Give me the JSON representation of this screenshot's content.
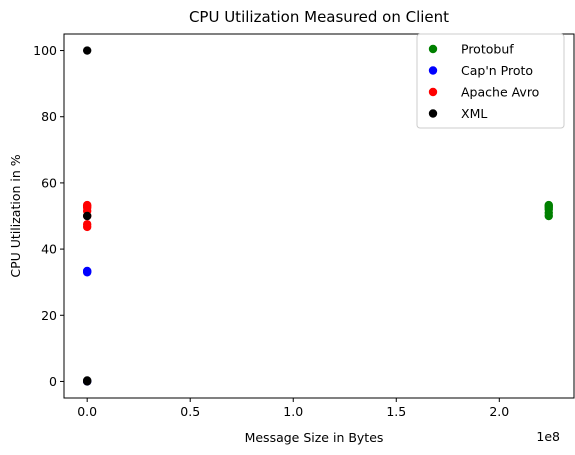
{
  "chart_data": {
    "type": "scatter",
    "title": "CPU Utilization Measured on Client",
    "xlabel": "Message Size in Bytes",
    "ylabel": "CPU Utilization in %",
    "x_offset_label": "1e8",
    "xlim": [
      -11250000,
      236250000
    ],
    "ylim": [
      -5,
      105
    ],
    "x_scale": 100000000,
    "x_ticks": [
      0,
      50000000,
      100000000,
      150000000,
      200000000
    ],
    "x_tick_labels": [
      "0.0",
      "0.5",
      "1.0",
      "1.5",
      "2.0"
    ],
    "y_ticks": [
      0,
      20,
      40,
      60,
      80,
      100
    ],
    "y_tick_labels": [
      "0",
      "20",
      "40",
      "60",
      "80",
      "100"
    ],
    "grid": false,
    "legend_position": "upper right",
    "series": [
      {
        "name": "Protobuf",
        "color": "#008000",
        "points": [
          [
            224000000,
            50
          ],
          [
            224000000,
            51
          ],
          [
            224000000,
            52
          ],
          [
            224000000,
            53
          ],
          [
            224000000,
            53.3
          ],
          [
            224000000,
            52.5
          ]
        ]
      },
      {
        "name": "Cap'n Proto",
        "color": "#0000ff",
        "points": [
          [
            0,
            0
          ],
          [
            0,
            33.3
          ],
          [
            0,
            33
          ],
          [
            0,
            33.4
          ]
        ]
      },
      {
        "name": "Apache Avro",
        "color": "#ff0000",
        "points": [
          [
            0,
            46.7
          ],
          [
            0,
            47.5
          ],
          [
            0,
            50
          ],
          [
            0,
            51.5
          ],
          [
            0,
            52.5
          ],
          [
            0,
            53
          ],
          [
            0,
            53.3
          ]
        ]
      },
      {
        "name": "XML",
        "color": "#000000",
        "points": [
          [
            0,
            0
          ],
          [
            0,
            0.3
          ],
          [
            0,
            50
          ],
          [
            0,
            100
          ]
        ]
      }
    ]
  }
}
